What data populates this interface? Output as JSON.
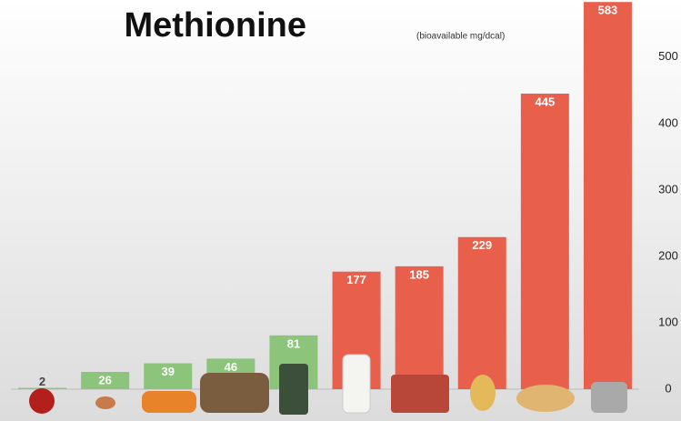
{
  "chart_data": {
    "type": "bar",
    "title": "Methionine",
    "subtitle": "(bioavailable mg/dcal)",
    "categories": [
      null,
      null,
      null,
      null,
      null,
      null,
      null,
      null,
      null,
      null
    ],
    "values": [
      2,
      26,
      39,
      46,
      81,
      177,
      185,
      229,
      445,
      583
    ],
    "colors": [
      "#8cc47c",
      "#8cc47c",
      "#8cc47c",
      "#8cc47c",
      "#8cc47c",
      "#e8604c",
      "#e8604c",
      "#e8604c",
      "#e8604c",
      "#e8604c"
    ],
    "ylim": [
      0,
      586
    ],
    "yticks": [
      0,
      100,
      200,
      300,
      400,
      500
    ],
    "grid": false
  }
}
